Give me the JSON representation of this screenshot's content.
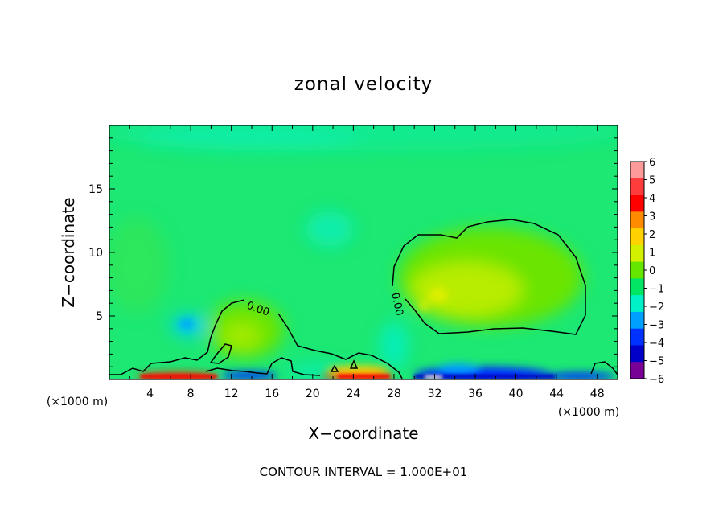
{
  "chart_data": {
    "type": "heatmap",
    "title": "zonal velocity",
    "xlabel": "X−coordinate",
    "ylabel": "Z−coordinate",
    "x_unit": "(×1000 m)",
    "z_unit": "(×1000 m)",
    "xlim": [
      0,
      50
    ],
    "ylim": [
      0,
      20
    ],
    "x_ticks": [
      4,
      8,
      12,
      16,
      20,
      24,
      28,
      32,
      36,
      40,
      44,
      48
    ],
    "y_ticks": [
      5,
      10,
      15
    ],
    "colorbar": {
      "levels": [
        6,
        5,
        4,
        3,
        2,
        1,
        0,
        -1,
        -2,
        -3,
        -4,
        -5,
        -6
      ],
      "labels": [
        "6",
        "5",
        "4",
        "3",
        "2",
        "1",
        "0",
        "−1",
        "−2",
        "−3",
        "−4",
        "−5",
        "−6"
      ],
      "colors": [
        "#ff9a9a",
        "#ff3c3c",
        "#ff0000",
        "#ff8c00",
        "#ffd200",
        "#d2f000",
        "#64e600",
        "#00e664",
        "#00f0c8",
        "#00a0ff",
        "#0032ff",
        "#0000c8",
        "#780096"
      ]
    },
    "contours": [
      {
        "value": 0.0,
        "label": "0.00",
        "region": "left mid-level eddy near x=6..20, z=0..6"
      },
      {
        "value": 0.0,
        "label": "0.00",
        "region": "right positive cell near x=28..47, z=4..12.5"
      }
    ],
    "features": [
      {
        "x": 38,
        "z": 8,
        "value": 1.2,
        "note": "positive core"
      },
      {
        "x": 13,
        "z": 4,
        "value": 0.8,
        "note": "weak positive core"
      },
      {
        "x": 7,
        "z": 4.5,
        "value": -2.3,
        "note": "negative patch"
      },
      {
        "x": 22,
        "z": 11,
        "value": -1.3,
        "note": "weak negative"
      },
      {
        "x": 14,
        "z": 18.5,
        "value": -1.1,
        "note": "upper weak negative"
      }
    ],
    "footer": "CONTOUR INTERVAL = 1.000E+01"
  }
}
